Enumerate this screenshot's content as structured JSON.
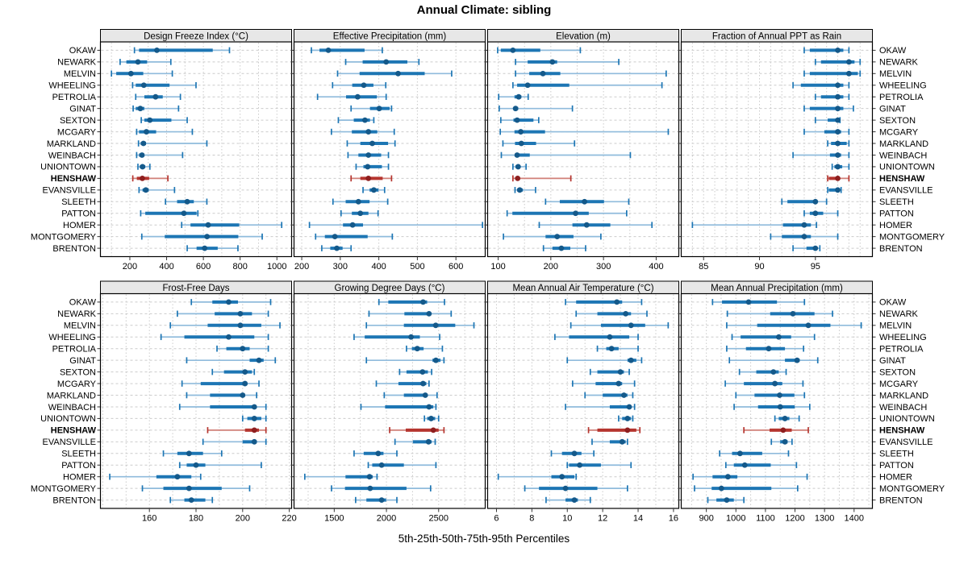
{
  "title": "Annual Climate: sibling",
  "footer": "5th-25th-50th-75th-95th Percentiles",
  "highlight_station": "HENSHAW",
  "colors": {
    "blue_whisker": "#8fbbdc",
    "blue_bar": "#1d76b4",
    "blue_dot": "#14598a",
    "red_whisker": "#d08078",
    "red_bar": "#b5352f",
    "red_dot": "#8e1f1f",
    "grid": "#cbcbcb",
    "header_bg": "#e7e7e7",
    "panel_border": "#000000",
    "tick": "#333333",
    "text": "#000000",
    "background": "#ffffff"
  },
  "chart_data": {
    "type": "dot-whisker-trellis",
    "percentiles": [
      5,
      25,
      50,
      75,
      95
    ],
    "legend": "5th-25th-50th-75th-95th Percentiles",
    "stations": [
      "OKAW",
      "NEWARK",
      "MELVIN",
      "WHEELING",
      "PETROLIA",
      "GINAT",
      "SEXTON",
      "MCGARY",
      "MARKLAND",
      "WEINBACH",
      "UNIONTOWN",
      "HENSHAW",
      "EVANSVILLE",
      "SLEETH",
      "PATTON",
      "HOMER",
      "MONTGOMERY",
      "BRENTON"
    ],
    "highlight_index": 11,
    "panels": [
      {
        "title": "Design Freeze Index (°C)",
        "xlim": [
          40,
          1080
        ],
        "ticks": [
          200,
          400,
          600,
          800,
          1000
        ],
        "grid_step": 100,
        "values": [
          [
            225,
            250,
            347,
            651,
            742
          ],
          [
            147,
            181,
            244,
            294,
            423
          ],
          [
            100,
            126,
            206,
            273,
            431
          ],
          [
            215,
            232,
            276,
            416,
            560
          ],
          [
            232,
            279,
            340,
            379,
            475
          ],
          [
            218,
            232,
            257,
            279,
            465
          ],
          [
            262,
            279,
            309,
            426,
            512
          ],
          [
            237,
            250,
            290,
            343,
            540
          ],
          [
            247,
            259,
            274,
            288,
            619
          ],
          [
            237,
            250,
            266,
            279,
            487
          ],
          [
            244,
            254,
            269,
            284,
            309
          ],
          [
            216,
            238,
            268,
            305,
            407
          ],
          [
            250,
            269,
            287,
            303,
            443
          ],
          [
            394,
            457,
            512,
            548,
            619
          ],
          [
            259,
            284,
            494,
            563,
            570
          ],
          [
            482,
            530,
            626,
            795,
            1026
          ],
          [
            265,
            390,
            620,
            790,
            920
          ],
          [
            512,
            563,
            607,
            678,
            788
          ]
        ]
      },
      {
        "title": "Effective Precipitation (mm)",
        "xlim": [
          180,
          676
        ],
        "ticks": [
          200,
          300,
          400,
          500,
          600
        ],
        "grid_step": 100,
        "values": [
          [
            225,
            246,
            269,
            363,
            409
          ],
          [
            314,
            358,
            419,
            474,
            504
          ],
          [
            293,
            350,
            450,
            519,
            589
          ],
          [
            280,
            331,
            361,
            386,
            418
          ],
          [
            241,
            315,
            345,
            395,
            419
          ],
          [
            328,
            377,
            401,
            428,
            433
          ],
          [
            295,
            335,
            364,
            377,
            387
          ],
          [
            277,
            330,
            373,
            396,
            440
          ],
          [
            318,
            352,
            383,
            424,
            442
          ],
          [
            320,
            347,
            373,
            406,
            425
          ],
          [
            341,
            360,
            371,
            408,
            425
          ],
          [
            328,
            352,
            373,
            410,
            433
          ],
          [
            359,
            376,
            387,
            399,
            415
          ],
          [
            281,
            314,
            347,
            376,
            423
          ],
          [
            302,
            330,
            352,
            373,
            398
          ],
          [
            220,
            307,
            332,
            359,
            669
          ],
          [
            236,
            260,
            286,
            371,
            435
          ],
          [
            252,
            274,
            291,
            306,
            328
          ]
        ]
      },
      {
        "title": "Elevation (m)",
        "xlim": [
          80,
          443
        ],
        "ticks": [
          100,
          200,
          300,
          400
        ],
        "grid_step": 50,
        "values": [
          [
            99,
            105,
            128,
            180,
            256
          ],
          [
            133,
            156,
            203,
            212,
            329
          ],
          [
            133,
            159,
            185,
            218,
            419
          ],
          [
            128,
            136,
            156,
            235,
            411
          ],
          [
            101,
            131,
            139,
            144,
            157
          ],
          [
            102,
            129,
            133,
            138,
            241
          ],
          [
            105,
            129,
            136,
            167,
            177
          ],
          [
            104,
            131,
            143,
            189,
            423
          ],
          [
            109,
            132,
            144,
            172,
            245
          ],
          [
            106,
            132,
            136,
            160,
            351
          ],
          [
            128,
            133,
            138,
            142,
            153
          ],
          [
            128,
            133,
            137,
            141,
            238
          ],
          [
            132,
            136,
            141,
            147,
            171
          ],
          [
            190,
            217,
            264,
            301,
            348
          ],
          [
            117,
            127,
            247,
            272,
            344
          ],
          [
            178,
            241,
            268,
            313,
            392
          ],
          [
            110,
            190,
            212,
            243,
            295
          ],
          [
            186,
            203,
            220,
            237,
            266
          ]
        ]
      },
      {
        "title": "Fraction of Annual PPT as Rain",
        "xlim": [
          83,
          100.1
        ],
        "ticks": [
          85,
          90,
          95
        ],
        "grid_step": 1,
        "values": [
          [
            94.0,
            94.5,
            97.0,
            97.5,
            98.0
          ],
          [
            95.0,
            95.5,
            98.0,
            98.5,
            99.0
          ],
          [
            94.0,
            94.5,
            98.0,
            98.8,
            99.0
          ],
          [
            93.0,
            93.7,
            97.0,
            97.5,
            98.0
          ],
          [
            95.0,
            95.5,
            97.0,
            97.5,
            98.0
          ],
          [
            94.0,
            94.5,
            97.0,
            97.5,
            98.4
          ],
          [
            95.0,
            96.1,
            97.0,
            97.1,
            97.2
          ],
          [
            94.0,
            95.8,
            97.0,
            97.3,
            98.0
          ],
          [
            96.1,
            96.4,
            97.0,
            97.8,
            98.0
          ],
          [
            93.0,
            96.3,
            97.0,
            97.3,
            98.0
          ],
          [
            96.5,
            96.7,
            97.0,
            97.4,
            98.0
          ],
          [
            96.1,
            96.2,
            97.0,
            97.1,
            98.0
          ],
          [
            96.1,
            96.2,
            97.0,
            97.1,
            97.3
          ],
          [
            92.0,
            92.5,
            95.0,
            95.1,
            96.0
          ],
          [
            94.0,
            94.5,
            95.0,
            95.7,
            97.0
          ],
          [
            84.0,
            92.1,
            94.0,
            94.6,
            95.1
          ],
          [
            91.0,
            92.0,
            94.0,
            94.6,
            97.0
          ],
          [
            93.0,
            94.2,
            95.0,
            95.2,
            95.4
          ]
        ]
      },
      {
        "title": "Frost-Free Days",
        "xlim": [
          139,
          221
        ],
        "ticks": [
          160,
          180,
          200,
          220
        ],
        "grid_step": 10,
        "values": [
          [
            178,
            187,
            194,
            198,
            212
          ],
          [
            172,
            188,
            199,
            204,
            211
          ],
          [
            169,
            185,
            199,
            208,
            216
          ],
          [
            165,
            175,
            194,
            205,
            211
          ],
          [
            189,
            193,
            200,
            203,
            211
          ],
          [
            176,
            203,
            207,
            209,
            214
          ],
          [
            187,
            192,
            201,
            204,
            205
          ],
          [
            174,
            182,
            201,
            202,
            207
          ],
          [
            176,
            186,
            200,
            201,
            206
          ],
          [
            173,
            186,
            205,
            206,
            210
          ],
          [
            200,
            202,
            205,
            208,
            210
          ],
          [
            185,
            201,
            205,
            207,
            210
          ],
          [
            183,
            200,
            205,
            206,
            210
          ],
          [
            166,
            172,
            177,
            183,
            191
          ],
          [
            173,
            176,
            180,
            184,
            208
          ],
          [
            143,
            163,
            172,
            178,
            182
          ],
          [
            157,
            166,
            177,
            191,
            203
          ],
          [
            169,
            175,
            178,
            184,
            187
          ]
        ]
      },
      {
        "title": "Growing Degree Days (°C)",
        "xlim": [
          1115,
          2946
        ],
        "ticks": [
          1500,
          2000,
          2500
        ],
        "grid_step": 250,
        "values": [
          [
            1928,
            2018,
            2351,
            2390,
            2556
          ],
          [
            1833,
            2172,
            2408,
            2428,
            2620
          ],
          [
            1808,
            2167,
            2472,
            2659,
            2838
          ],
          [
            1690,
            1792,
            2236,
            2320,
            2510
          ],
          [
            2192,
            2244,
            2295,
            2356,
            2536
          ],
          [
            1808,
            2441,
            2474,
            2518,
            2551
          ],
          [
            2126,
            2192,
            2346,
            2397,
            2433
          ],
          [
            1903,
            2115,
            2351,
            2382,
            2408
          ],
          [
            1979,
            2167,
            2372,
            2390,
            2485
          ],
          [
            1756,
            1987,
            2408,
            2449,
            2474
          ],
          [
            2364,
            2390,
            2428,
            2467,
            2500
          ],
          [
            2031,
            2185,
            2449,
            2500,
            2551
          ],
          [
            2082,
            2254,
            2403,
            2433,
            2467
          ],
          [
            1690,
            1782,
            1921,
            1972,
            2100
          ],
          [
            1826,
            1864,
            1954,
            2167,
            2474
          ],
          [
            1218,
            1608,
            1838,
            1869,
            1910
          ],
          [
            1474,
            1603,
            1844,
            2192,
            2423
          ],
          [
            1705,
            1808,
            1954,
            1997,
            2100
          ]
        ]
      },
      {
        "title": "Mean Annual Air Temperature (°C)",
        "xlim": [
          5.5,
          16.3
        ],
        "ticks": [
          6,
          8,
          10,
          12,
          14,
          16
        ],
        "grid_step": 1,
        "values": [
          [
            9.9,
            10.5,
            12.8,
            13.1,
            14.2
          ],
          [
            10.5,
            11.7,
            13.3,
            13.6,
            14.5
          ],
          [
            10.2,
            11.9,
            13.6,
            14.4,
            15.7
          ],
          [
            9.3,
            10.1,
            12.4,
            13.5,
            14.0
          ],
          [
            11.7,
            12.2,
            12.5,
            12.9,
            14.0
          ],
          [
            10.0,
            13.4,
            13.6,
            13.9,
            14.2
          ],
          [
            11.3,
            11.7,
            13.0,
            13.2,
            13.5
          ],
          [
            10.3,
            11.6,
            12.9,
            13.1,
            13.8
          ],
          [
            11.0,
            12.0,
            13.2,
            13.4,
            13.7
          ],
          [
            9.9,
            12.4,
            13.5,
            13.6,
            13.8
          ],
          [
            12.9,
            13.1,
            13.4,
            13.6,
            13.7
          ],
          [
            11.2,
            11.7,
            13.4,
            13.9,
            14.1
          ],
          [
            11.4,
            12.4,
            13.1,
            13.3,
            13.4
          ],
          [
            9.1,
            9.7,
            10.4,
            10.8,
            11.5
          ],
          [
            10.0,
            10.1,
            10.7,
            11.9,
            13.6
          ],
          [
            6.1,
            9.1,
            9.7,
            10.4,
            10.5
          ],
          [
            7.6,
            8.4,
            9.9,
            11.7,
            13.4
          ],
          [
            8.8,
            9.9,
            10.4,
            10.6,
            11.3
          ]
        ]
      },
      {
        "title": "Mean Annual Precipitation (mm)",
        "xlim": [
          815,
          1462
        ],
        "ticks": [
          900,
          1000,
          1100,
          1200,
          1300,
          1400
        ],
        "grid_step": 50,
        "values": [
          [
            921,
            953,
            1043,
            1139,
            1232
          ],
          [
            971,
            1116,
            1193,
            1266,
            1327
          ],
          [
            969,
            1072,
            1245,
            1320,
            1424
          ],
          [
            987,
            1016,
            1145,
            1187,
            1266
          ],
          [
            969,
            1034,
            1111,
            1166,
            1229
          ],
          [
            978,
            1166,
            1207,
            1216,
            1277
          ],
          [
            1012,
            1069,
            1127,
            1145,
            1170
          ],
          [
            964,
            1027,
            1132,
            1157,
            1227
          ],
          [
            1000,
            1063,
            1148,
            1198,
            1232
          ],
          [
            994,
            1075,
            1150,
            1199,
            1250
          ],
          [
            1132,
            1145,
            1166,
            1181,
            1214
          ],
          [
            1027,
            1114,
            1160,
            1189,
            1245
          ],
          [
            1120,
            1150,
            1166,
            1175,
            1190
          ],
          [
            945,
            987,
            1014,
            1089,
            1178
          ],
          [
            966,
            993,
            1030,
            1118,
            1205
          ],
          [
            855,
            921,
            973,
            1005,
            1241
          ],
          [
            860,
            918,
            951,
            1120,
            1209
          ],
          [
            905,
            934,
            969,
            993,
            1027
          ]
        ]
      }
    ]
  }
}
